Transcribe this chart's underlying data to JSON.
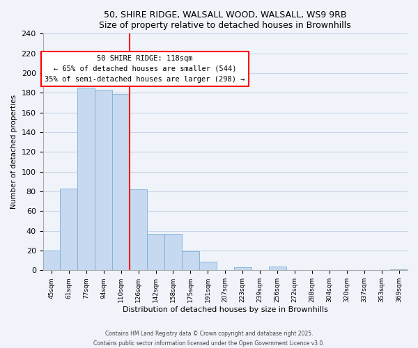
{
  "title": "50, SHIRE RIDGE, WALSALL WOOD, WALSALL, WS9 9RB",
  "subtitle": "Size of property relative to detached houses in Brownhills",
  "xlabel": "Distribution of detached houses by size in Brownhills",
  "ylabel": "Number of detached properties",
  "bin_labels": [
    "45sqm",
    "61sqm",
    "77sqm",
    "94sqm",
    "110sqm",
    "126sqm",
    "142sqm",
    "158sqm",
    "175sqm",
    "191sqm",
    "207sqm",
    "223sqm",
    "239sqm",
    "256sqm",
    "272sqm",
    "288sqm",
    "304sqm",
    "320sqm",
    "337sqm",
    "353sqm",
    "369sqm"
  ],
  "bar_heights": [
    20,
    83,
    185,
    183,
    179,
    82,
    37,
    37,
    19,
    9,
    0,
    3,
    0,
    4,
    0,
    0,
    0,
    0,
    0,
    0,
    1
  ],
  "bar_color": "#c6d9f1",
  "bar_edge_color": "#7eaed4",
  "vline_x_index": 5,
  "vline_color": "red",
  "annotation_title": "50 SHIRE RIDGE: 118sqm",
  "annotation_line1": "← 65% of detached houses are smaller (544)",
  "annotation_line2": "35% of semi-detached houses are larger (298) →",
  "annotation_box_color": "white",
  "annotation_box_edge": "red",
  "ylim": [
    0,
    240
  ],
  "yticks": [
    0,
    20,
    40,
    60,
    80,
    100,
    120,
    140,
    160,
    180,
    200,
    220,
    240
  ],
  "footer1": "Contains HM Land Registry data © Crown copyright and database right 2025.",
  "footer2": "Contains public sector information licensed under the Open Government Licence v3.0.",
  "bg_color": "#f0f4fa",
  "grid_color": "#c8d4e8",
  "title_fontsize": 9,
  "subtitle_fontsize": 8.5,
  "ylabel_fontsize": 7.5,
  "xlabel_fontsize": 8,
  "ytick_fontsize": 8,
  "xtick_fontsize": 6.5,
  "footer_fontsize": 5.5,
  "ann_fontsize": 7.5
}
